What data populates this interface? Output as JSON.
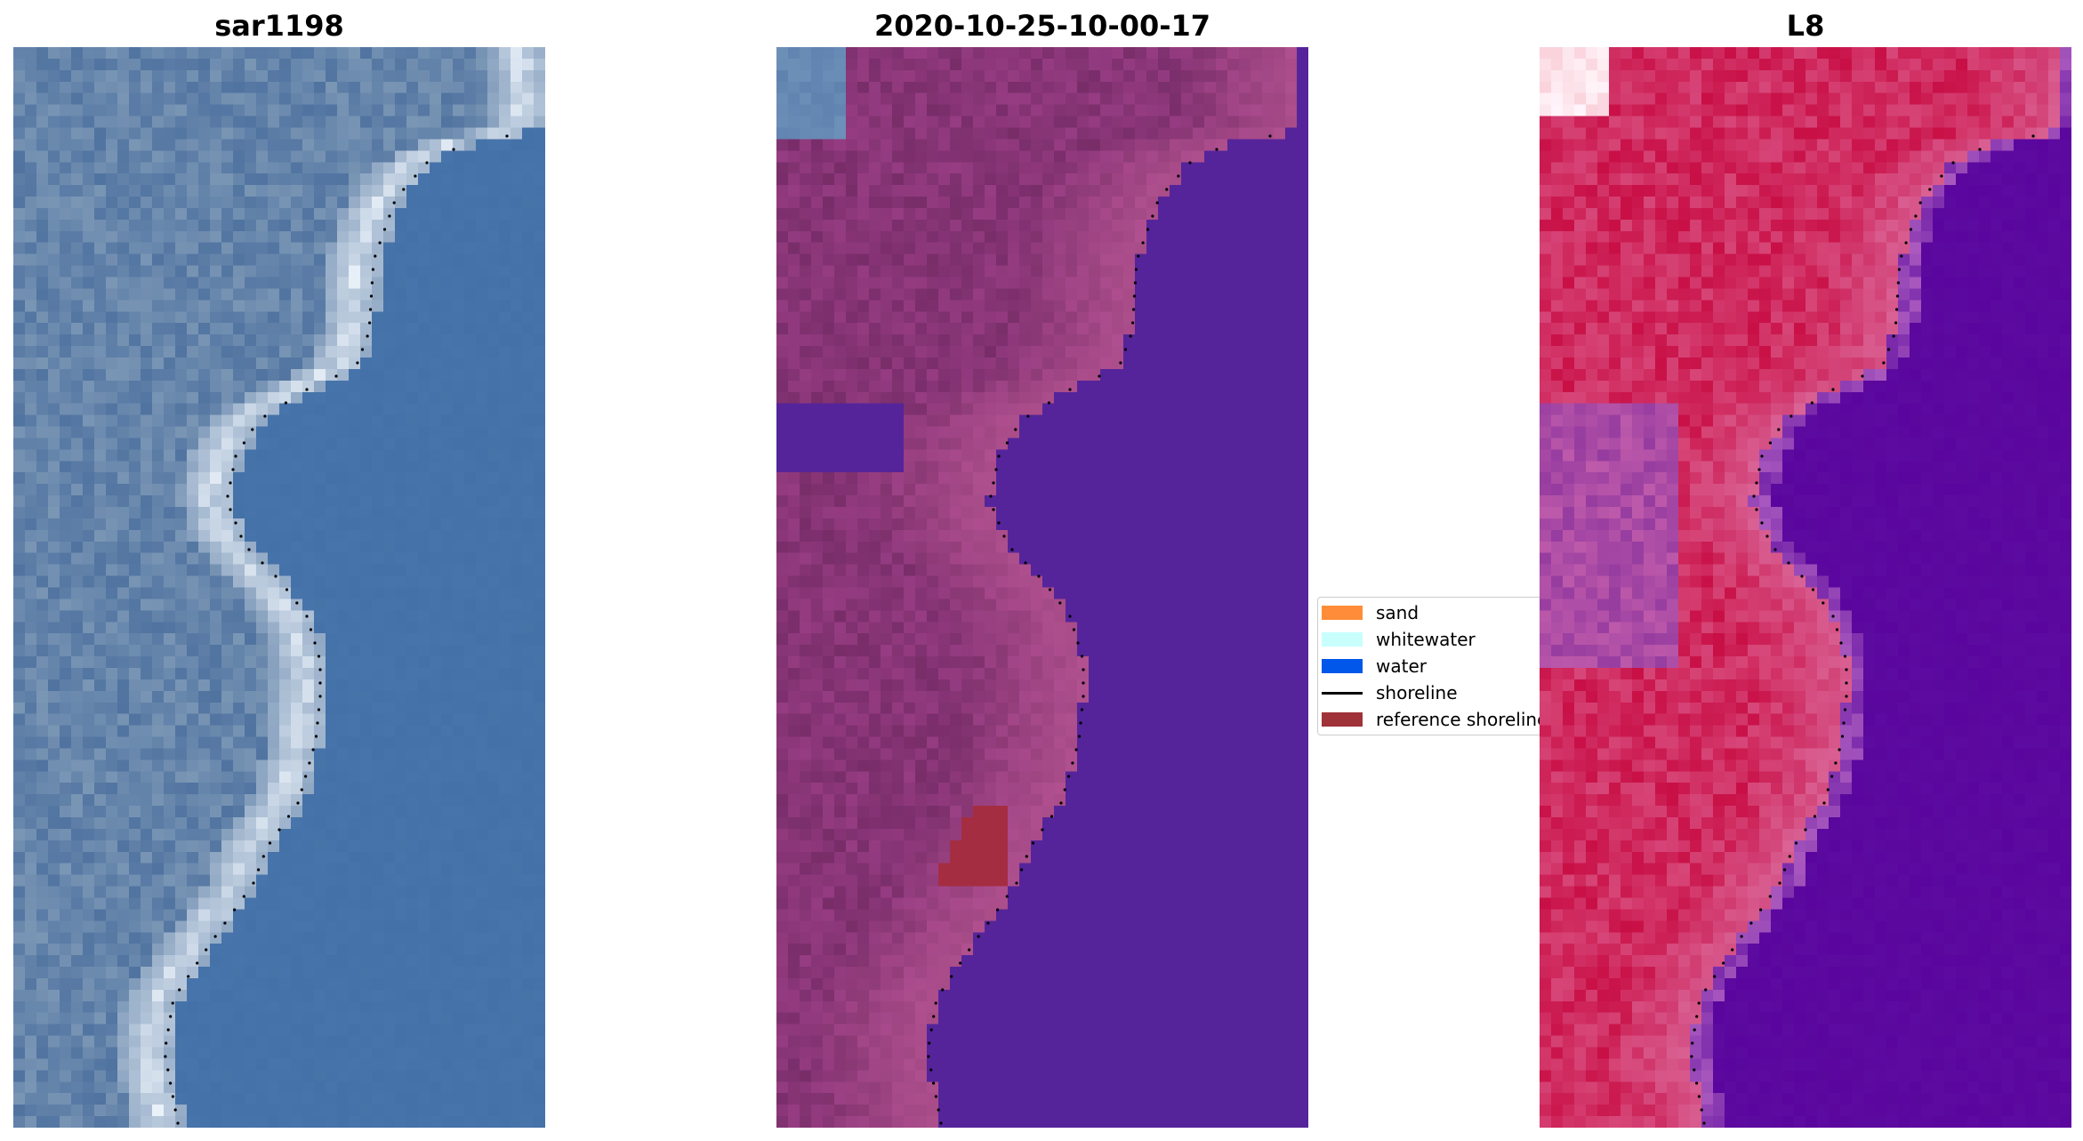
{
  "panels": [
    {
      "id": "left",
      "title": "sar1198"
    },
    {
      "id": "mid",
      "title": "2020-10-25-10-00-17"
    },
    {
      "id": "right",
      "title": "L8"
    }
  ],
  "legend": {
    "items": [
      {
        "label": "sand",
        "color": "#ff8c38",
        "kind": "patch"
      },
      {
        "label": "whitewater",
        "color": "#c8fffd",
        "kind": "patch"
      },
      {
        "label": "water",
        "color": "#0057ea",
        "kind": "patch"
      },
      {
        "label": "shoreline",
        "color": "#000000",
        "kind": "line"
      },
      {
        "label": "reference shoreline",
        "color": "#a0333a",
        "kind": "patch"
      }
    ]
  },
  "colors": {
    "water_rgb": "#4471a8",
    "water_classified": "#55249a",
    "land_classified": "#7d3370",
    "water_index": "#5a069e",
    "land_index": "#c5154a"
  }
}
